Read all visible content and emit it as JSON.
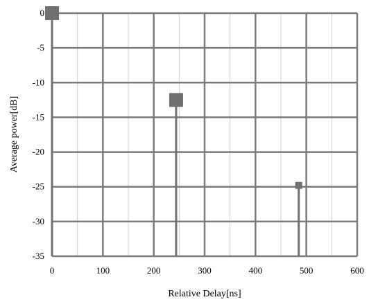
{
  "chart_data": {
    "type": "stem",
    "xlabel": "Relative Delay[ns]",
    "ylabel": "Average power[dB]",
    "xlim": [
      0,
      600
    ],
    "ylim": [
      -35,
      0
    ],
    "xticks": [
      0,
      100,
      200,
      300,
      400,
      500,
      600
    ],
    "yticks": [
      0,
      -5,
      -10,
      -15,
      -20,
      -25,
      -30,
      -35
    ],
    "grid": true,
    "legend": "none",
    "points": [
      {
        "x": 0,
        "y": 0,
        "marker": "large-square"
      },
      {
        "x": 244,
        "y": -12.5,
        "marker": "large-square"
      },
      {
        "x": 485,
        "y": -24.8,
        "marker": "small-square"
      }
    ],
    "colors": {
      "grid": "#7a7a7a",
      "stem": "#707070",
      "marker": "#707070"
    }
  }
}
